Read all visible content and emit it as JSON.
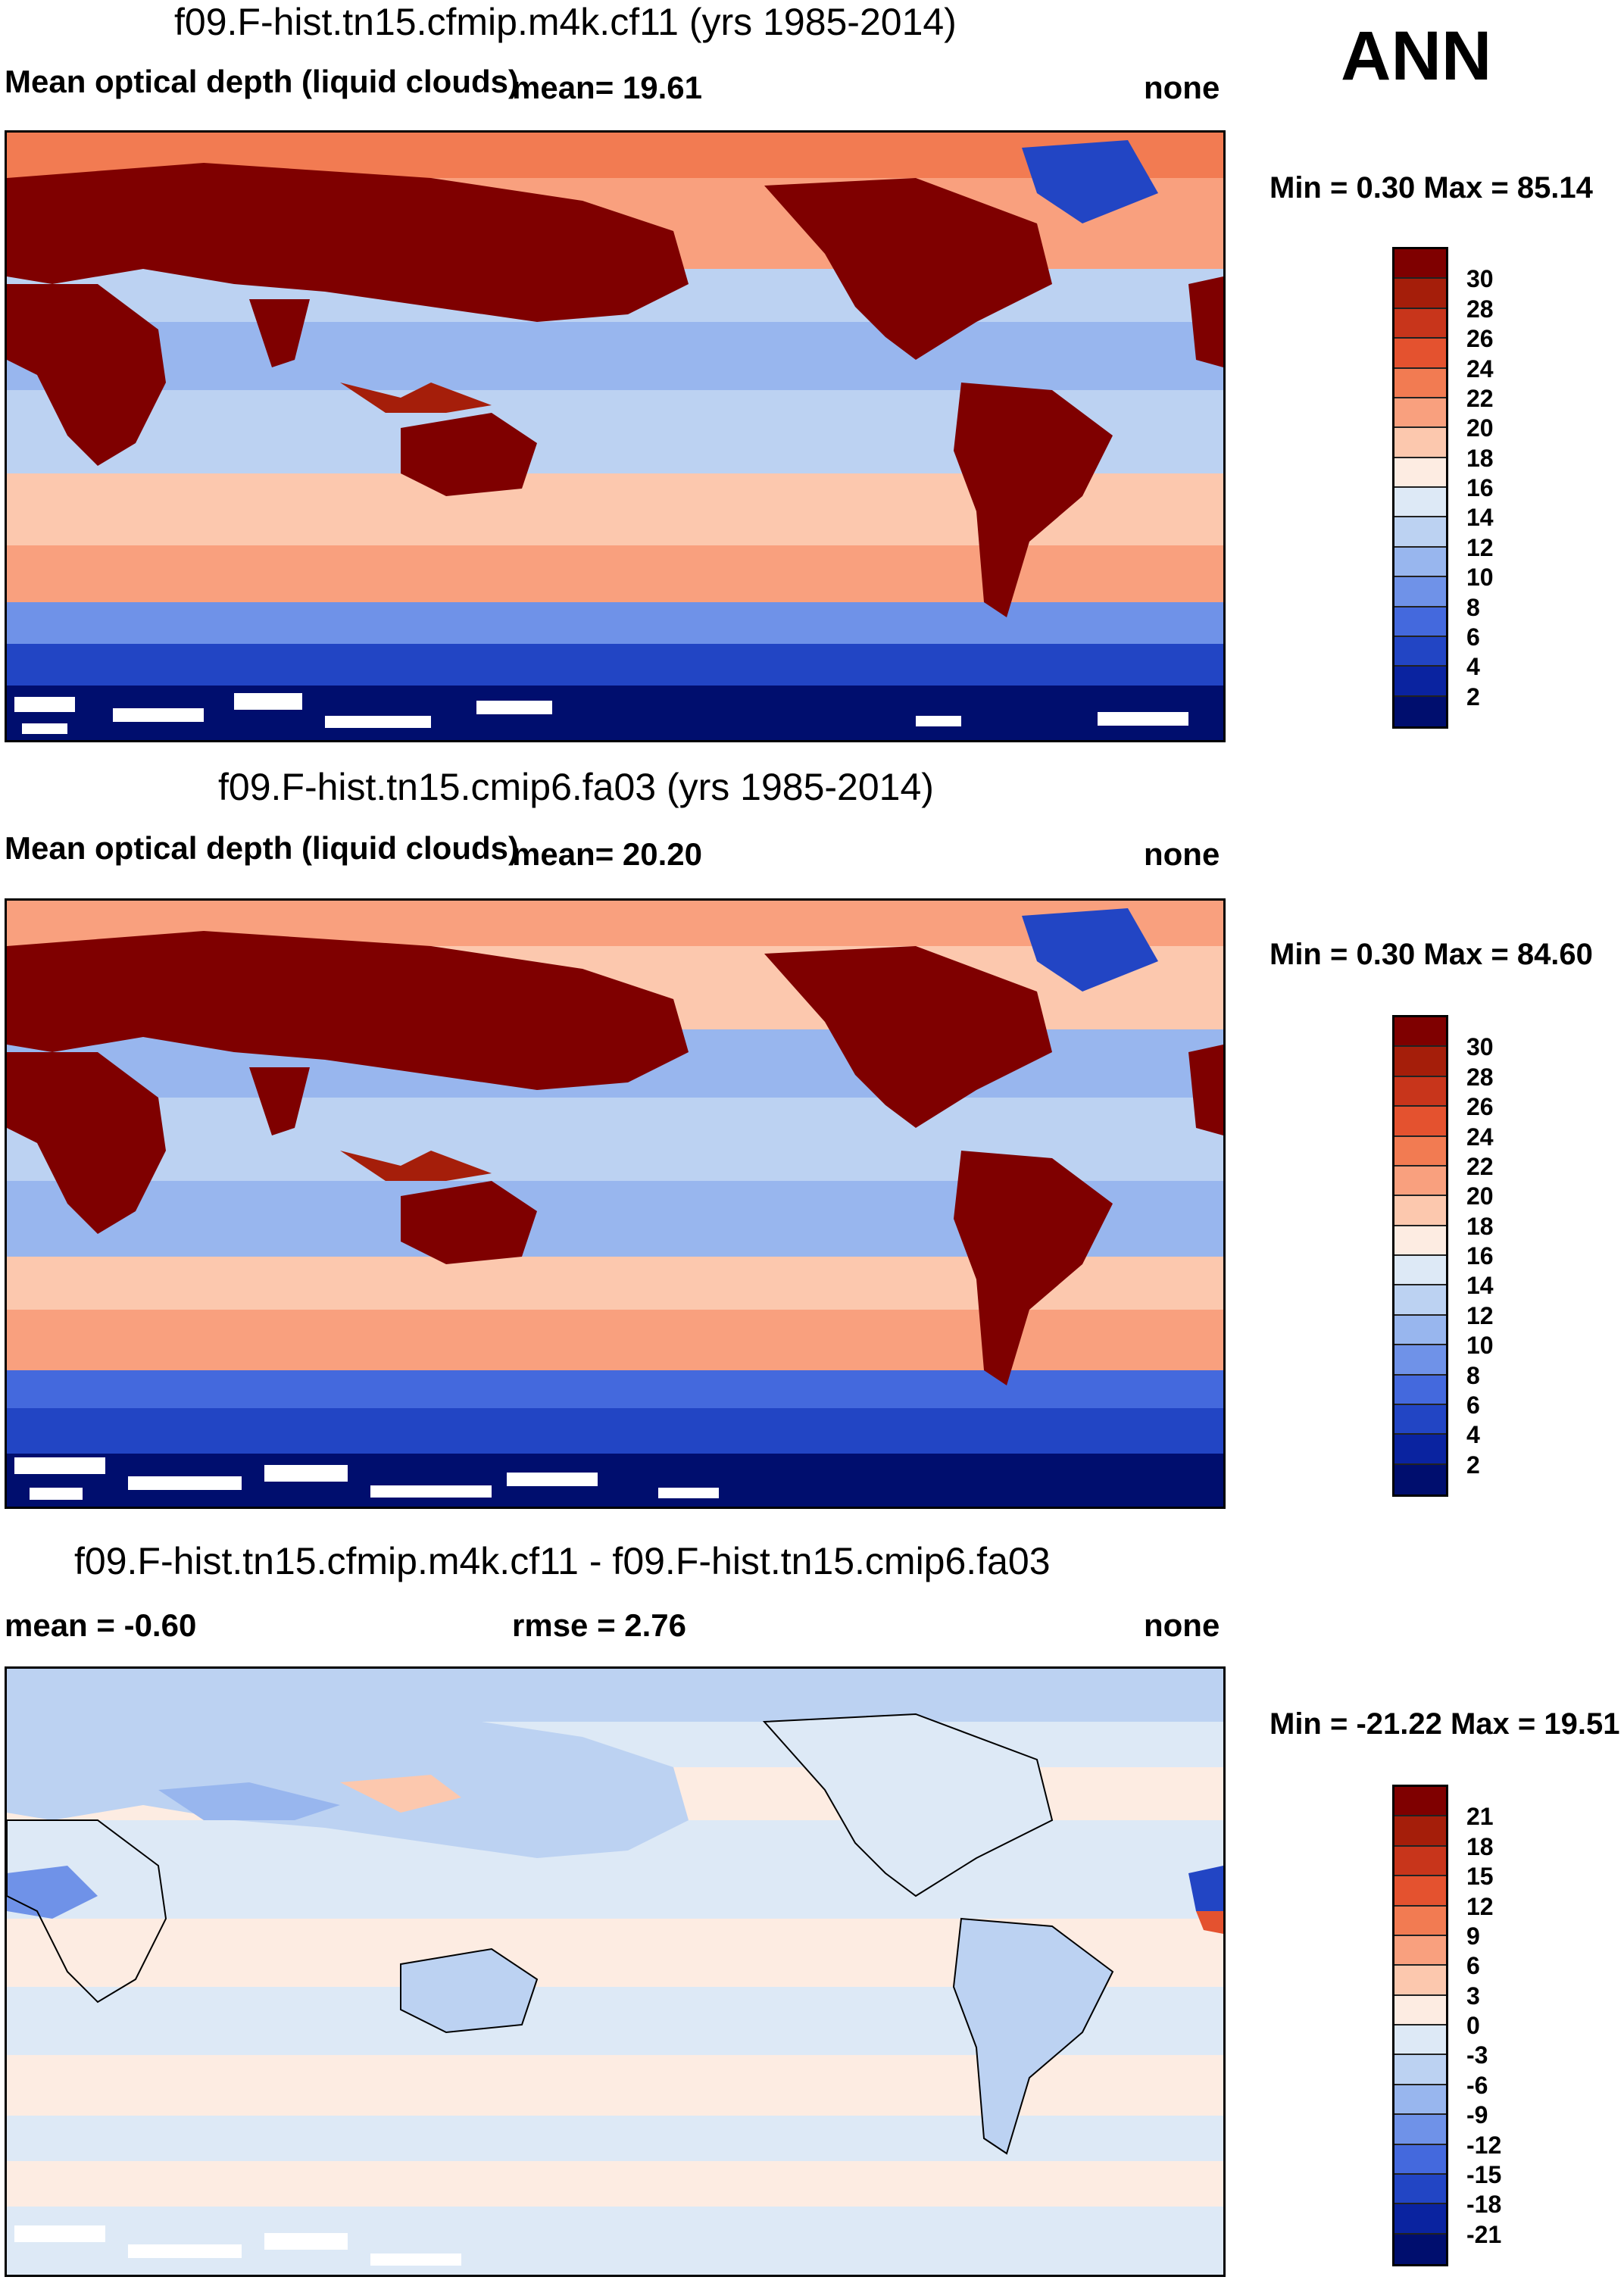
{
  "season": "ANN",
  "panels": [
    {
      "title": "f09.F-hist.tn15.cfmip.m4k.cf11 (yrs 1985-2014)",
      "variable": "Mean optical depth (liquid clouds)",
      "mean_text": "mean=  19.61",
      "units": "none",
      "minmax_text": "Min =   0.30 Max =  85.14",
      "colorbar_labels": [
        "30",
        "28",
        "26",
        "24",
        "22",
        "20",
        "18",
        "16",
        "14",
        "12",
        "10",
        "8",
        "6",
        "4",
        "2"
      ],
      "colors": [
        "#7f0000",
        "#a51e0a",
        "#c8351b",
        "#e4522f",
        "#f27b52",
        "#f9a07e",
        "#fcc8ae",
        "#fdece2",
        "#dde9f6",
        "#bcd2f2",
        "#98b6ee",
        "#6f92e8",
        "#4469dd",
        "#2245c4",
        "#0a23a0",
        "#000e6e"
      ]
    },
    {
      "title": "f09.F-hist.tn15.cmip6.fa03 (yrs 1985-2014)",
      "variable": "Mean optical depth (liquid clouds)",
      "mean_text": "mean=  20.20",
      "units": "none",
      "minmax_text": "Min =   0.30 Max =  84.60",
      "colorbar_labels": [
        "30",
        "28",
        "26",
        "24",
        "22",
        "20",
        "18",
        "16",
        "14",
        "12",
        "10",
        "8",
        "6",
        "4",
        "2"
      ],
      "colors": [
        "#7f0000",
        "#a51e0a",
        "#c8351b",
        "#e4522f",
        "#f27b52",
        "#f9a07e",
        "#fcc8ae",
        "#fdece2",
        "#dde9f6",
        "#bcd2f2",
        "#98b6ee",
        "#6f92e8",
        "#4469dd",
        "#2245c4",
        "#0a23a0",
        "#000e6e"
      ]
    },
    {
      "title": "f09.F-hist.tn15.cfmip.m4k.cf11 - f09.F-hist.tn15.cmip6.fa03",
      "mean_text": "mean =  -0.60",
      "rmse_text": "rmse =    2.76",
      "units": "none",
      "minmax_text": "Min = -21.22 Max =  19.51",
      "colorbar_labels": [
        "21",
        "18",
        "15",
        "12",
        "9",
        "6",
        "3",
        "0",
        "-3",
        "-6",
        "-9",
        "-12",
        "-15",
        "-18",
        "-21"
      ],
      "colors": [
        "#7f0000",
        "#a51e0a",
        "#c8351b",
        "#e4522f",
        "#f27b52",
        "#f9a07e",
        "#fcc8ae",
        "#fdece2",
        "#dde9f6",
        "#bcd2f2",
        "#98b6ee",
        "#6f92e8",
        "#4469dd",
        "#2245c4",
        "#0a23a0",
        "#000e6e"
      ]
    }
  ],
  "chart_data": [
    {
      "type": "heatmap",
      "title": "f09.F-hist.tn15.cfmip.m4k.cf11 (yrs 1985-2014)",
      "subtitle": "Mean optical depth (liquid clouds)",
      "mean": 19.61,
      "min": 0.3,
      "max": 85.14,
      "units": "none",
      "levels": [
        2,
        4,
        6,
        8,
        10,
        12,
        14,
        16,
        18,
        20,
        22,
        24,
        26,
        28,
        30
      ],
      "x_range": [
        0,
        360
      ],
      "y_range": [
        -90,
        90
      ]
    },
    {
      "type": "heatmap",
      "title": "f09.F-hist.tn15.cmip6.fa03 (yrs 1985-2014)",
      "subtitle": "Mean optical depth (liquid clouds)",
      "mean": 20.2,
      "min": 0.3,
      "max": 84.6,
      "units": "none",
      "levels": [
        2,
        4,
        6,
        8,
        10,
        12,
        14,
        16,
        18,
        20,
        22,
        24,
        26,
        28,
        30
      ],
      "x_range": [
        0,
        360
      ],
      "y_range": [
        -90,
        90
      ]
    },
    {
      "type": "heatmap",
      "title": "f09.F-hist.tn15.cfmip.m4k.cf11 - f09.F-hist.tn15.cmip6.fa03",
      "mean": -0.6,
      "rmse": 2.76,
      "min": -21.22,
      "max": 19.51,
      "units": "none",
      "levels": [
        -21,
        -18,
        -15,
        -12,
        -9,
        -6,
        -3,
        0,
        3,
        6,
        9,
        12,
        15,
        18,
        21
      ],
      "x_range": [
        0,
        360
      ],
      "y_range": [
        -90,
        90
      ]
    }
  ]
}
